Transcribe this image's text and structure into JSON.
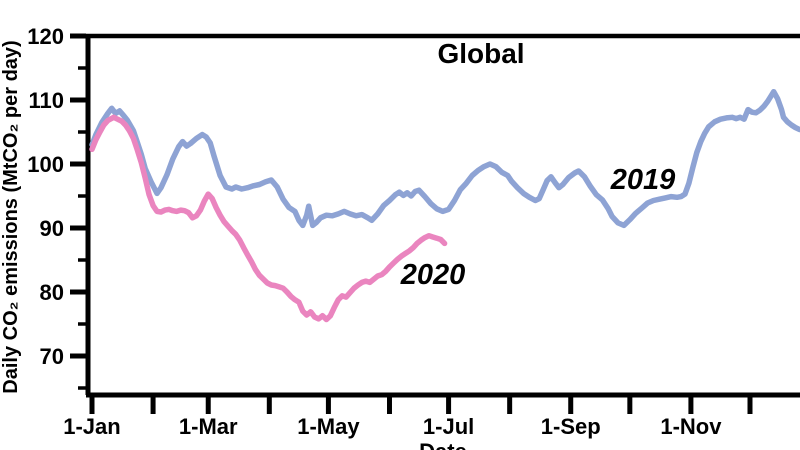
{
  "title": "Global",
  "y_axis_label": "Daily CO₂ emissions (MtCO₂ per day)",
  "x_axis_label": "Date",
  "annotations": {
    "label_2019": "2019",
    "label_2020": "2020"
  },
  "colors": {
    "line_2019": "#8ea3d4",
    "line_2020": "#ea85bf",
    "label_2019": "#1558b0",
    "label_2020": "#ee90e2",
    "axis": "#000000"
  },
  "chart_data": {
    "type": "line",
    "title": "Global",
    "xlabel": "Date",
    "ylabel": "Daily CO₂ emissions (MtCO₂ per day)",
    "ylim": [
      70,
      120
    ],
    "grid": false,
    "legend_position": "inline-annotations",
    "y_ticks": {
      "major": [
        120,
        110,
        100,
        90,
        80,
        70
      ],
      "minor": [
        115,
        105,
        95,
        85,
        75,
        65
      ]
    },
    "x_ticks": {
      "labeled": [
        {
          "day": 1,
          "label": "1-Jan"
        },
        {
          "day": 60,
          "label": "1-Mar"
        },
        {
          "day": 121,
          "label": "1-May"
        },
        {
          "day": 182,
          "label": "1-Jul"
        },
        {
          "day": 244,
          "label": "1-Sep"
        },
        {
          "day": 305,
          "label": "1-Nov"
        }
      ],
      "minor_days": [
        32,
        91,
        152,
        213,
        274,
        335
      ]
    },
    "series": [
      {
        "name": "2019",
        "color": "#8ea3d4",
        "points": [
          [
            1,
            103.0
          ],
          [
            3,
            104.6
          ],
          [
            6,
            106.5
          ],
          [
            9,
            107.9
          ],
          [
            11,
            108.7
          ],
          [
            13,
            107.9
          ],
          [
            15,
            108.3
          ],
          [
            17,
            107.6
          ],
          [
            19,
            106.8
          ],
          [
            22,
            105.2
          ],
          [
            24,
            103.4
          ],
          [
            26,
            101.5
          ],
          [
            28,
            99.3
          ],
          [
            31,
            97.2
          ],
          [
            34,
            95.4
          ],
          [
            36,
            96.3
          ],
          [
            39,
            98.3
          ],
          [
            42,
            100.8
          ],
          [
            45,
            102.7
          ],
          [
            47,
            103.5
          ],
          [
            49,
            102.8
          ],
          [
            51,
            103.2
          ],
          [
            54,
            104.0
          ],
          [
            57,
            104.6
          ],
          [
            59,
            104.2
          ],
          [
            61,
            103.3
          ],
          [
            63,
            101.2
          ],
          [
            66,
            98.2
          ],
          [
            69,
            96.4
          ],
          [
            72,
            96.1
          ],
          [
            74,
            96.4
          ],
          [
            77,
            96.1
          ],
          [
            80,
            96.3
          ],
          [
            83,
            96.6
          ],
          [
            86,
            96.8
          ],
          [
            89,
            97.2
          ],
          [
            92,
            97.5
          ],
          [
            95,
            96.4
          ],
          [
            98,
            94.5
          ],
          [
            101,
            93.2
          ],
          [
            104,
            92.6
          ],
          [
            106,
            91.2
          ],
          [
            108,
            90.4
          ],
          [
            110,
            92.0
          ],
          [
            111,
            93.4
          ],
          [
            113,
            90.4
          ],
          [
            115,
            90.9
          ],
          [
            117,
            91.6
          ],
          [
            120,
            92.0
          ],
          [
            123,
            91.9
          ],
          [
            126,
            92.2
          ],
          [
            129,
            92.6
          ],
          [
            132,
            92.2
          ],
          [
            135,
            91.9
          ],
          [
            138,
            92.1
          ],
          [
            141,
            91.6
          ],
          [
            143,
            91.2
          ],
          [
            146,
            92.2
          ],
          [
            149,
            93.5
          ],
          [
            152,
            94.3
          ],
          [
            155,
            95.2
          ],
          [
            157,
            95.6
          ],
          [
            159,
            95.1
          ],
          [
            161,
            95.5
          ],
          [
            163,
            95.0
          ],
          [
            165,
            95.7
          ],
          [
            167,
            95.9
          ],
          [
            170,
            94.9
          ],
          [
            173,
            93.8
          ],
          [
            176,
            93.0
          ],
          [
            179,
            92.6
          ],
          [
            182,
            92.9
          ],
          [
            185,
            94.3
          ],
          [
            188,
            96.0
          ],
          [
            191,
            97.0
          ],
          [
            194,
            98.2
          ],
          [
            197,
            99.0
          ],
          [
            200,
            99.6
          ],
          [
            203,
            100.0
          ],
          [
            206,
            99.6
          ],
          [
            209,
            98.7
          ],
          [
            212,
            98.2
          ],
          [
            214,
            97.3
          ],
          [
            217,
            96.3
          ],
          [
            220,
            95.4
          ],
          [
            223,
            94.8
          ],
          [
            226,
            94.3
          ],
          [
            228,
            94.6
          ],
          [
            230,
            96.0
          ],
          [
            232,
            97.4
          ],
          [
            234,
            98.0
          ],
          [
            236,
            97.1
          ],
          [
            238,
            96.3
          ],
          [
            240,
            96.8
          ],
          [
            243,
            97.9
          ],
          [
            246,
            98.6
          ],
          [
            248,
            98.9
          ],
          [
            251,
            98.0
          ],
          [
            254,
            96.5
          ],
          [
            257,
            95.2
          ],
          [
            260,
            94.4
          ],
          [
            263,
            93.0
          ],
          [
            265,
            91.8
          ],
          [
            268,
            90.8
          ],
          [
            271,
            90.4
          ],
          [
            274,
            91.3
          ],
          [
            277,
            92.3
          ],
          [
            280,
            93.1
          ],
          [
            283,
            93.9
          ],
          [
            286,
            94.3
          ],
          [
            289,
            94.5
          ],
          [
            292,
            94.7
          ],
          [
            295,
            94.9
          ],
          [
            298,
            94.8
          ],
          [
            300,
            94.9
          ],
          [
            302,
            95.3
          ],
          [
            304,
            97.0
          ],
          [
            306,
            99.5
          ],
          [
            308,
            101.8
          ],
          [
            310,
            103.5
          ],
          [
            312,
            104.8
          ],
          [
            314,
            105.8
          ],
          [
            317,
            106.6
          ],
          [
            320,
            107.0
          ],
          [
            323,
            107.2
          ],
          [
            326,
            107.3
          ],
          [
            328,
            107.1
          ],
          [
            330,
            107.3
          ],
          [
            332,
            107.0
          ],
          [
            334,
            108.5
          ],
          [
            336,
            108.1
          ],
          [
            338,
            108.0
          ],
          [
            340,
            108.4
          ],
          [
            342,
            109.0
          ],
          [
            344,
            109.8
          ],
          [
            346,
            110.8
          ],
          [
            347,
            111.3
          ],
          [
            349,
            110.2
          ],
          [
            351,
            108.5
          ],
          [
            352,
            107.3
          ],
          [
            354,
            106.6
          ],
          [
            356,
            106.1
          ],
          [
            358,
            105.7
          ],
          [
            360,
            105.4
          ],
          [
            362,
            105.3
          ]
        ]
      },
      {
        "name": "2020",
        "color": "#ea85bf",
        "points": [
          [
            1,
            102.3
          ],
          [
            3,
            103.8
          ],
          [
            5,
            105.0
          ],
          [
            7,
            106.1
          ],
          [
            9,
            106.8
          ],
          [
            12,
            107.3
          ],
          [
            14,
            107.0
          ],
          [
            16,
            106.7
          ],
          [
            18,
            106.1
          ],
          [
            20,
            105.2
          ],
          [
            22,
            104.0
          ],
          [
            24,
            102.2
          ],
          [
            26,
            100.2
          ],
          [
            28,
            97.8
          ],
          [
            30,
            95.2
          ],
          [
            32,
            93.5
          ],
          [
            34,
            92.6
          ],
          [
            36,
            92.5
          ],
          [
            38,
            92.8
          ],
          [
            40,
            92.9
          ],
          [
            42,
            92.7
          ],
          [
            44,
            92.6
          ],
          [
            46,
            92.8
          ],
          [
            48,
            92.7
          ],
          [
            50,
            92.4
          ],
          [
            52,
            91.6
          ],
          [
            54,
            91.9
          ],
          [
            56,
            92.8
          ],
          [
            58,
            94.2
          ],
          [
            60,
            95.3
          ],
          [
            62,
            94.6
          ],
          [
            64,
            93.2
          ],
          [
            66,
            92.0
          ],
          [
            68,
            91.0
          ],
          [
            70,
            90.3
          ],
          [
            72,
            89.6
          ],
          [
            74,
            89.0
          ],
          [
            76,
            88.1
          ],
          [
            78,
            86.9
          ],
          [
            80,
            85.8
          ],
          [
            82,
            84.7
          ],
          [
            84,
            83.5
          ],
          [
            86,
            82.6
          ],
          [
            88,
            82.0
          ],
          [
            90,
            81.4
          ],
          [
            92,
            81.1
          ],
          [
            94,
            81.0
          ],
          [
            96,
            80.8
          ],
          [
            98,
            80.6
          ],
          [
            100,
            80.0
          ],
          [
            102,
            79.3
          ],
          [
            104,
            78.8
          ],
          [
            106,
            78.4
          ],
          [
            108,
            77.0
          ],
          [
            110,
            76.4
          ],
          [
            112,
            76.9
          ],
          [
            114,
            76.1
          ],
          [
            116,
            75.8
          ],
          [
            118,
            76.3
          ],
          [
            120,
            75.7
          ],
          [
            122,
            76.3
          ],
          [
            124,
            77.6
          ],
          [
            126,
            78.8
          ],
          [
            128,
            79.4
          ],
          [
            130,
            79.2
          ],
          [
            132,
            79.9
          ],
          [
            134,
            80.6
          ],
          [
            136,
            81.1
          ],
          [
            138,
            81.5
          ],
          [
            140,
            81.7
          ],
          [
            142,
            81.5
          ],
          [
            144,
            82.0
          ],
          [
            146,
            82.5
          ],
          [
            148,
            82.7
          ],
          [
            150,
            83.2
          ],
          [
            152,
            83.9
          ],
          [
            154,
            84.5
          ],
          [
            156,
            85.1
          ],
          [
            158,
            85.6
          ],
          [
            160,
            86.0
          ],
          [
            162,
            86.4
          ],
          [
            164,
            86.9
          ],
          [
            166,
            87.6
          ],
          [
            168,
            88.1
          ],
          [
            170,
            88.5
          ],
          [
            172,
            88.8
          ],
          [
            174,
            88.6
          ],
          [
            176,
            88.4
          ],
          [
            178,
            88.2
          ],
          [
            180,
            87.6
          ]
        ]
      }
    ]
  }
}
